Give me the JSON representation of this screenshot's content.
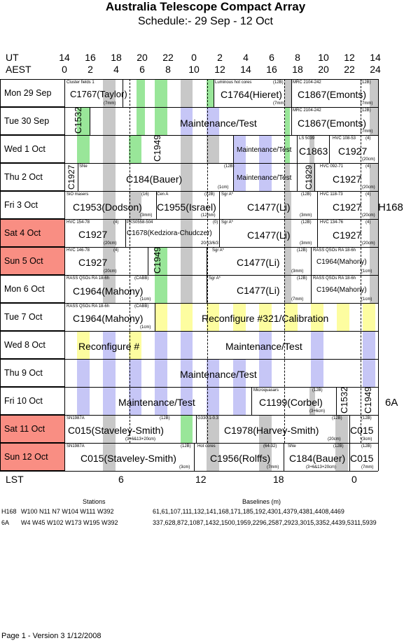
{
  "title": "Australia Telescope Compact Array",
  "subtitle": "Schedule:- 29 Sep - 12 Oct",
  "ut_label": "UT",
  "aest_label": "AEST",
  "ut_hours": [
    "14",
    "16",
    "18",
    "20",
    "22",
    "0",
    "2",
    "4",
    "6",
    "8",
    "10",
    "12",
    "14"
  ],
  "aest_hours": [
    "0",
    "2",
    "4",
    "6",
    "8",
    "10",
    "12",
    "14",
    "16",
    "18",
    "20",
    "22",
    "24"
  ],
  "days": [
    {
      "label": "Mon  29 Sep",
      "weekend": false
    },
    {
      "label": "Tue  30 Sep",
      "weekend": false
    },
    {
      "label": "Wed   1 Oct",
      "weekend": false
    },
    {
      "label": "Thu   2 Oct",
      "weekend": false
    },
    {
      "label": "Fri   3 Oct",
      "weekend": false
    },
    {
      "label": "Sat   4 Oct",
      "weekend": true
    },
    {
      "label": "Sun   5 Oct",
      "weekend": true
    },
    {
      "label": "Mon   6 Oct",
      "weekend": false
    },
    {
      "label": "Tue   7 Oct",
      "weekend": false
    },
    {
      "label": "Wed   8 Oct",
      "weekend": false
    },
    {
      "label": "Thu   9 Oct",
      "weekend": false
    },
    {
      "label": "Fri   10 Oct",
      "weekend": false
    },
    {
      "label": "Sat   11 Oct",
      "weekend": true
    },
    {
      "label": "Sun   12 Oct",
      "weekend": true
    }
  ],
  "config_labels": {
    "h168": "H168",
    "a6": "6A"
  },
  "obs": {
    "mon_taylor": "C1767(Taylor)",
    "mon_taylor_t": "Cluster fields 1",
    "mon_taylor_b": "(7mm)",
    "mon_hieret": "C1764(Hieret)",
    "mon_hieret_t": "Luminous hot cores",
    "mon_hieret_n": "(12B)",
    "mon_hieret_b": "(7mm)",
    "mon_emonts": "C1867(Emonts)",
    "mon_emonts_t": "MRC 2104-242",
    "mon_emonts_n": "(12B)",
    "mon_emonts_b": "(7mm)",
    "tue_c1532": "C1532",
    "tue_maint": "Maintenance/Test",
    "tue_emonts": "C1867(Emonts)",
    "tue_emonts_t": "MRC 2104-242",
    "tue_emonts_n": "(12B)",
    "tue_emonts_b": "(7mm)",
    "wed_c1949": "C1949",
    "wed_maint": "Maintenance/Test",
    "wed_c1863": "C1863",
    "wed_c1863_t": "LS 5039",
    "wed_c1927": "C1927",
    "wed_c1927_t": "HVC 108-53",
    "wed_c1927_n": "(4)",
    "wed_c1927_b": "(20cm)",
    "thu_c1927a": "C1927",
    "thu_bauer": "C184(Bauer)",
    "thu_bauer_t": "SNe",
    "thu_bauer_n": "(12B)",
    "thu_bauer_b": "(1cm)",
    "thu_maint": "Maintenance/Test",
    "thu_c1929": "C1929",
    "thu_c1927": "C1927",
    "thu_c1927_t": "HVC 092-71",
    "thu_c1927_n": "(4)",
    "thu_c1927_b": "(20cm)",
    "fri_dodson": "C1953(Dodson)",
    "fri_dodson_t": "SiO masers",
    "fri_dodson_n": "(16)",
    "fri_dodson_b": "(3mm)",
    "fri_israel": "C1955(Israel)",
    "fri_israel_t": "Cen A",
    "fri_israel_n": "(12B)",
    "fri_israel_b": "(12mm)",
    "fri_li": "C1477(Li)",
    "fri_li_t": "Sgr A*",
    "fri_li_n": "(12B)",
    "fri_li_b": "(3mm)",
    "fri_c1927": "C1927",
    "fri_c1927_t": "HVC 118-73",
    "fri_c1927_n": "(4)",
    "fri_c1927_b": "(20cm)",
    "sat_c1927": "C1927",
    "sat_c1927_t": "HVC 154-78",
    "sat_c1927_n": "(4)",
    "sat_c1927_b": "(20cm)",
    "sat_kedz": "C1678(Kedziora-Chudczer)",
    "sat_kedz_t": "PKS0558-504",
    "sat_kedz_n": "(0)",
    "sat_kedz_b": "20/13/6/3",
    "sat_li": "C1477(Li)",
    "sat_li_t": "Sgr A*",
    "sat_li_n": "(12B)",
    "sat_li_b": "(3mm)",
    "sat_c1927b": "C1927",
    "sat_c1927b_t": "HVC 134-76",
    "sat_c1927b_n": "(4)",
    "sat_c1927b_b": "(20cm)",
    "sun_c1927": "C1927",
    "sun_c1927_t": "HVC 146-78",
    "sun_c1927_n": "(4)",
    "sun_c1927_b": "(20cm)",
    "sun_c1949": "C1949",
    "sun_li": "C1477(Li)",
    "sun_li_t": "Sgr A*",
    "sun_li_n": "(12B)",
    "sun_li_b": "(3mm)",
    "sun_mahony": "C1964(Mahony)",
    "sun_mahony_t": "RASS QSOs RA 18-6h",
    "sun_mahony_b": "(1cm)",
    "mon6_mahony": "C1964(Mahony)",
    "mon6_mahony_t": "RASS QSOs RA 18-6h",
    "mon6_mahony_n": "(CABB)",
    "mon6_mahony_b": "(1cm)",
    "mon6_li": "C1477(Li)",
    "mon6_li_t": "Sgr A*",
    "mon6_li_n": "(12B)",
    "mon6_li_b": "(7mm)",
    "mon6_mahony2": "C1964(Mahony)",
    "mon6_mahony2_t": "RASS QSOs RA 18-6h",
    "mon6_mahony2_b": "(1cm)",
    "tue7_mahony": "C1964(Mahony)",
    "tue7_mahony_t": "RASS QSOs RA 18-6h",
    "tue7_mahony_n": "(CABB)",
    "tue7_mahony_b": "(1cm)",
    "tue7_reconf": "Reconfigure #321/Calibration",
    "wed8_reconf": "Reconfigure #",
    "wed8_maint": "Maintenance/Test",
    "thu9_maint": "Maintenance/Test",
    "fri10_maint": "Maintenance/Test",
    "fri10_corbel": "C1199(Corbel)",
    "fri10_corbel_t": "Microquasars",
    "fri10_corbel_n": "(12B)",
    "fri10_corbel_b": "(3+6cm)",
    "fri10_c1532": "C1532",
    "fri10_c1949": "C1949",
    "sat11_ss": "C015(Staveley-Smith)",
    "sat11_ss_t": "SN1987A",
    "sat11_ss_n": "(12B)",
    "sat11_ss_b": "(3+6&13+20cm)",
    "sat11_hs": "C1978(Harvey-Smith)",
    "sat11_hs_t": "G330.1-0.3",
    "sat11_hs_n": "(12B)",
    "sat11_hs_b": "(20cm)",
    "sat11_c015": "C015",
    "sat11_c015_n": "(12B)",
    "sat11_c015_b": "(3cm)",
    "sun12_ss": "C015(Staveley-Smith)",
    "sun12_ss_t": "SN1987A",
    "sun12_ss_n": "(12B)",
    "sun12_ss_b": "(3cm)",
    "sun12_rolffs": "C1956(Rolffs)",
    "sun12_rolffs_t": "Hot cores",
    "sun12_rolffs_n": "(64-32)",
    "sun12_rolffs_b": "(7mm)",
    "sun12_bauer": "C184(Bauer)",
    "sun12_bauer_t": "SNe",
    "sun12_bauer_n": "(12B)",
    "sun12_bauer_b": "(3+6&13+20cm)",
    "sun12_c015": "C015",
    "sun12_c015_n": "(12B)",
    "sun12_c015_b": "(7mm)"
  },
  "lst_label": "LST",
  "lst_ticks": [
    "6",
    "12",
    "18",
    "0"
  ],
  "stations_header": "Stations",
  "baselines_header": "Baselines (m)",
  "configs": [
    {
      "name": "H168",
      "stations": "W100 N11 N7 W104 W111 W392",
      "baselines": "61,61,107,111,132,141,168,171,185,192,4301,4379,4381,4408,4469"
    },
    {
      "name": "6A",
      "stations": "W4 W45 W102 W173 W195 W392",
      "baselines": "337,628,872,1087,1432,1500,1959,2296,2587,2923,3015,3352,4439,5311,5939"
    }
  ],
  "footer": "Page 1 - Version 3  1/12/2008",
  "colors": {
    "green": "#99e699",
    "gray": "#c8c8c8",
    "lav": "#c6c6f6",
    "yellow": "#fdfda0",
    "weekend": "#f98e83"
  }
}
